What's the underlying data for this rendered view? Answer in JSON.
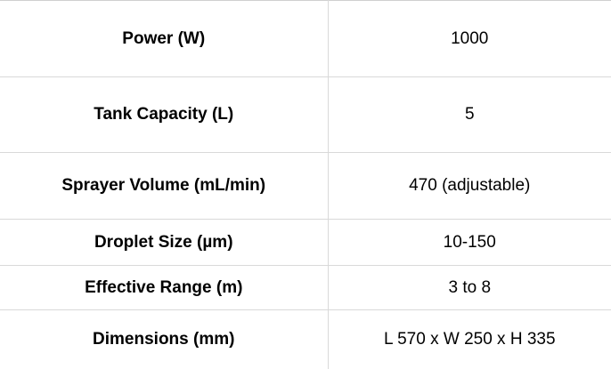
{
  "specs": [
    {
      "label": "Power (W)",
      "value": "1000"
    },
    {
      "label": "Tank Capacity (L)",
      "value": "5"
    },
    {
      "label": "Sprayer Volume (mL/min)",
      "value": "470 (adjustable)"
    },
    {
      "label": "Droplet Size (µm)",
      "value": "10-150"
    },
    {
      "label": "Effective Range (m)",
      "value": "3 to 8"
    },
    {
      "label": "Dimensions (mm)",
      "value": "L 570 x W 250 x H 335"
    }
  ]
}
